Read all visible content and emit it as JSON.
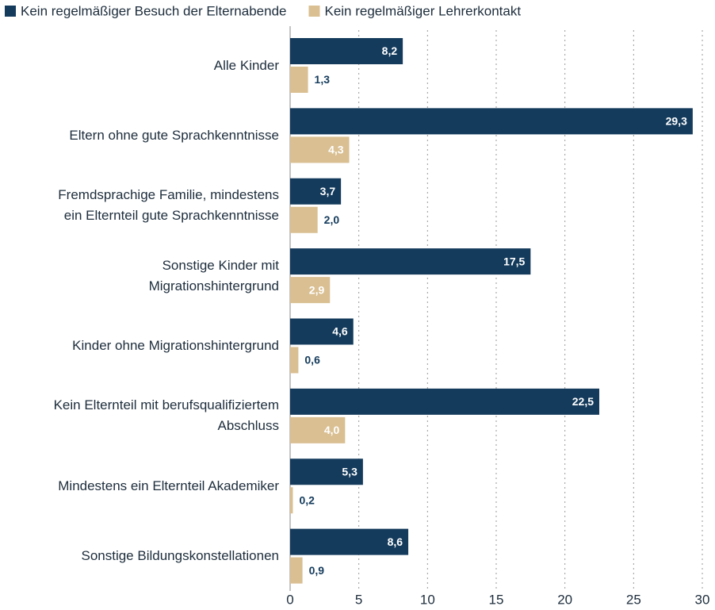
{
  "chart_data": {
    "type": "bar",
    "orientation": "horizontal",
    "categories": [
      "Alle Kinder",
      "Eltern ohne gute Sprachkenntnisse",
      "Fremdsprachige Familie, mindestens\nein Elternteil gute Sprachkenntnisse",
      "Sonstige Kinder mit\nMigrationshintergrund",
      "Kinder ohne Migrationshintergrund",
      "Kein Elternteil mit berufsqualifiziertem\nAbschluss",
      "Mindestens ein Elternteil Akademiker",
      "Sonstige Bildungskonstellationen"
    ],
    "series": [
      {
        "name": "Kein regelmäßiger Besuch der Elternabende",
        "color": "#143b5c",
        "values": [
          8.2,
          29.3,
          3.7,
          17.5,
          4.6,
          22.5,
          5.3,
          8.6
        ],
        "value_labels": [
          "8,2",
          "29,3",
          "3,7",
          "17,5",
          "4,6",
          "22,5",
          "5,3",
          "8,6"
        ]
      },
      {
        "name": "Kein regelmäßiger Lehrerkontakt",
        "color": "#d9bf92",
        "values": [
          1.3,
          4.3,
          2.0,
          2.9,
          0.6,
          4.0,
          0.2,
          0.9
        ],
        "value_labels": [
          "1,3",
          "4,3",
          "2,0",
          "2,9",
          "0,6",
          "4,0",
          "0,2",
          "0,9"
        ]
      }
    ],
    "xlim": [
      0,
      30
    ],
    "xticks": [
      0,
      5,
      10,
      15,
      20,
      25,
      30
    ],
    "grid": true,
    "legend": "top"
  }
}
